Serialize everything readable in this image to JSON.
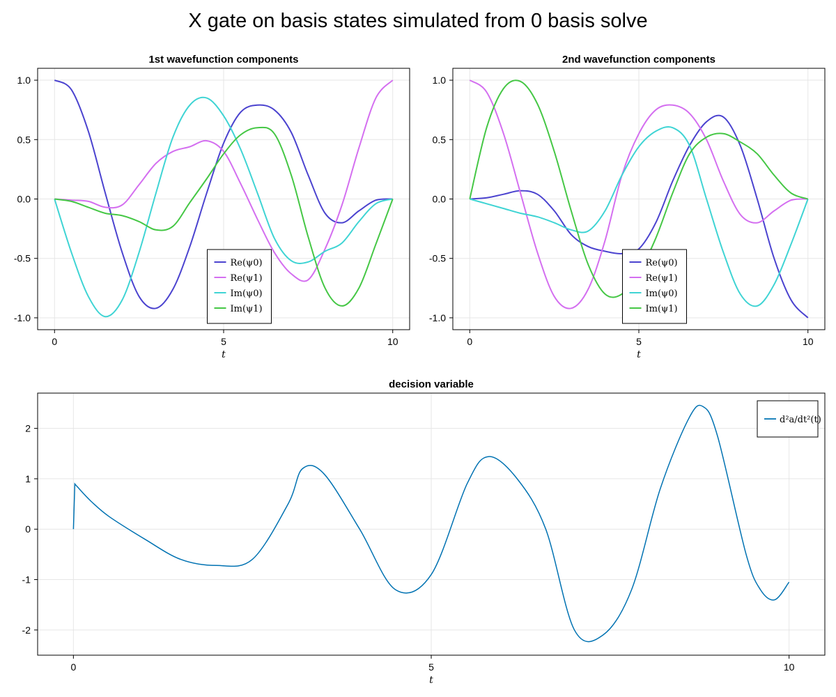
{
  "figure_title": "X gate on basis states simulated from 0 basis solve",
  "colors": {
    "re0": "#4b43cf",
    "re1": "#d46ff0",
    "im0": "#3fd4d4",
    "im1": "#45c745",
    "control": "#0072b2"
  },
  "chart_data": [
    {
      "type": "line",
      "title": "1st wavefunction components",
      "xlabel": "t",
      "xlim": [
        -0.5,
        10.5
      ],
      "ylim": [
        -1.1,
        1.1
      ],
      "xticks": [
        0,
        5,
        10
      ],
      "yticks": [
        1.0,
        0.5,
        0.0,
        -0.5,
        -1.0
      ],
      "ytick_labels": [
        "1.0",
        "0.5",
        "0.0",
        "-0.5",
        "-1.0"
      ],
      "grid": true,
      "legend_position": "bottom-center",
      "x": [
        0,
        0.5,
        1,
        1.5,
        2,
        2.5,
        3,
        3.5,
        4,
        4.5,
        5,
        5.5,
        6,
        6.5,
        7,
        7.5,
        8,
        8.5,
        9,
        9.5,
        10
      ],
      "series": [
        {
          "name": "Re(ψ0)",
          "color_key": "re0",
          "values": [
            1.0,
            0.92,
            0.57,
            0.05,
            -0.45,
            -0.82,
            -0.92,
            -0.76,
            -0.4,
            0.05,
            0.47,
            0.73,
            0.79,
            0.75,
            0.56,
            0.2,
            -0.12,
            -0.2,
            -0.1,
            -0.01,
            0.0
          ]
        },
        {
          "name": "Re(ψ1)",
          "color_key": "re1",
          "values": [
            0.0,
            -0.01,
            -0.02,
            -0.07,
            -0.05,
            0.12,
            0.3,
            0.4,
            0.44,
            0.49,
            0.4,
            0.13,
            -0.17,
            -0.45,
            -0.63,
            -0.68,
            -0.42,
            -0.05,
            0.43,
            0.85,
            1.0
          ]
        },
        {
          "name": "Im(ψ0)",
          "color_key": "im0",
          "values": [
            0.0,
            -0.45,
            -0.82,
            -0.99,
            -0.85,
            -0.45,
            0.05,
            0.52,
            0.79,
            0.85,
            0.7,
            0.42,
            0.05,
            -0.33,
            -0.52,
            -0.53,
            -0.44,
            -0.37,
            -0.19,
            -0.04,
            0.0
          ]
        },
        {
          "name": "Im(ψ1)",
          "color_key": "im1",
          "values": [
            0.0,
            -0.02,
            -0.07,
            -0.12,
            -0.14,
            -0.19,
            -0.26,
            -0.23,
            -0.03,
            0.17,
            0.38,
            0.54,
            0.6,
            0.55,
            0.2,
            -0.32,
            -0.75,
            -0.9,
            -0.75,
            -0.38,
            0.0
          ]
        }
      ],
      "legend": [
        "Re(ψ0)",
        "Re(ψ1)",
        "Im(ψ0)",
        "Im(ψ1)"
      ]
    },
    {
      "type": "line",
      "title": "2nd wavefunction components",
      "xlabel": "t",
      "xlim": [
        -0.5,
        10.5
      ],
      "ylim": [
        -1.1,
        1.1
      ],
      "xticks": [
        0,
        5,
        10
      ],
      "yticks": [
        1.0,
        0.5,
        0.0,
        -0.5,
        -1.0
      ],
      "ytick_labels": [
        "1.0",
        "0.5",
        "0.0",
        "-0.5",
        "-1.0"
      ],
      "grid": true,
      "legend_position": "bottom-center",
      "x": [
        0,
        0.5,
        1,
        1.5,
        2,
        2.5,
        3,
        3.5,
        4,
        4.5,
        5,
        5.5,
        6,
        6.5,
        7,
        7.5,
        8,
        8.5,
        9,
        9.5,
        10
      ],
      "series": [
        {
          "name": "Re(ψ0)",
          "color_key": "re0",
          "values": [
            0.0,
            0.01,
            0.04,
            0.07,
            0.04,
            -0.1,
            -0.3,
            -0.4,
            -0.44,
            -0.46,
            -0.42,
            -0.2,
            0.15,
            0.45,
            0.65,
            0.69,
            0.45,
            0.0,
            -0.5,
            -0.85,
            -1.0
          ]
        },
        {
          "name": "Re(ψ1)",
          "color_key": "re1",
          "values": [
            1.0,
            0.9,
            0.55,
            0.05,
            -0.45,
            -0.82,
            -0.92,
            -0.76,
            -0.35,
            0.2,
            0.55,
            0.75,
            0.79,
            0.72,
            0.5,
            0.15,
            -0.13,
            -0.2,
            -0.1,
            -0.01,
            0.0
          ]
        },
        {
          "name": "Im(ψ0)",
          "color_key": "im0",
          "values": [
            0.0,
            -0.04,
            -0.08,
            -0.12,
            -0.15,
            -0.2,
            -0.26,
            -0.27,
            -0.1,
            0.2,
            0.44,
            0.57,
            0.6,
            0.45,
            0.0,
            -0.45,
            -0.8,
            -0.9,
            -0.72,
            -0.38,
            0.0
          ]
        },
        {
          "name": "Im(ψ1)",
          "color_key": "im1",
          "values": [
            0.0,
            0.6,
            0.93,
            0.99,
            0.8,
            0.4,
            -0.1,
            -0.55,
            -0.8,
            -0.8,
            -0.62,
            -0.33,
            0.05,
            0.38,
            0.52,
            0.55,
            0.48,
            0.38,
            0.2,
            0.05,
            0.0
          ]
        }
      ],
      "legend": [
        "Re(ψ0)",
        "Re(ψ1)",
        "Im(ψ0)",
        "Im(ψ1)"
      ]
    },
    {
      "type": "line",
      "title": "decision variable",
      "xlabel": "t",
      "xlim": [
        -0.5,
        10.5
      ],
      "ylim": [
        -2.5,
        2.7
      ],
      "xticks": [
        0,
        5,
        10
      ],
      "yticks": [
        2,
        1,
        0,
        -1,
        -2
      ],
      "ytick_labels": [
        "2",
        "1",
        "0",
        "-1",
        "-2"
      ],
      "grid": true,
      "legend_position": "top-right",
      "x": [
        0,
        0.02,
        0.05,
        0.25,
        0.5,
        1.0,
        1.5,
        2.0,
        2.5,
        3.0,
        3.2,
        3.5,
        4.0,
        4.5,
        5.0,
        5.5,
        5.8,
        6.2,
        6.6,
        7.0,
        7.4,
        7.8,
        8.2,
        8.6,
        8.8,
        9.0,
        9.4,
        9.6,
        9.8,
        10.0
      ],
      "series": [
        {
          "name": "d²a/dt²(t)",
          "color_key": "control",
          "values": [
            0.0,
            0.9,
            0.85,
            0.55,
            0.25,
            -0.2,
            -0.6,
            -0.72,
            -0.6,
            0.5,
            1.2,
            1.1,
            0.0,
            -1.2,
            -0.9,
            0.9,
            1.44,
            1.0,
            0.0,
            -2.0,
            -2.1,
            -1.2,
            0.8,
            2.2,
            2.43,
            1.85,
            -0.5,
            -1.2,
            -1.4,
            -1.05
          ]
        }
      ],
      "legend": [
        "d²a/dt²(t)"
      ]
    }
  ]
}
